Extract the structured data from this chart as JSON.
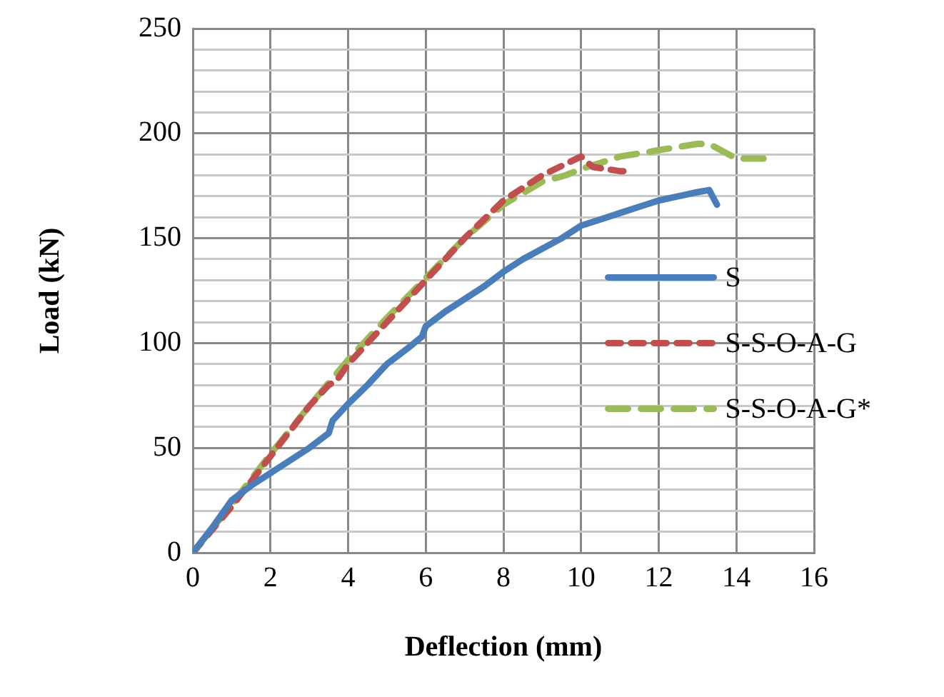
{
  "chart_data": {
    "type": "line",
    "xlabel": "Deflection (mm)",
    "ylabel": "Load (kN)",
    "xlim": [
      0,
      16
    ],
    "xticks": [
      0,
      2,
      4,
      6,
      8,
      10,
      12,
      14,
      16
    ],
    "ylim": [
      0,
      250
    ],
    "yticks": [
      0,
      {
        "value": 10,
        "label": null
      },
      {
        "value": 20,
        "label": null
      },
      {
        "value": 30,
        "label": null
      },
      {
        "value": 40,
        "label": null
      },
      50,
      {
        "value": 60,
        "label": null
      },
      {
        "value": 70,
        "label": null
      },
      {
        "value": 80,
        "label": null
      },
      {
        "value": 90,
        "label": null
      },
      100,
      {
        "value": 110,
        "label": null
      },
      {
        "value": 120,
        "label": null
      },
      {
        "value": 130,
        "label": null
      },
      {
        "value": 140,
        "label": null
      },
      150,
      {
        "value": 160,
        "label": null
      },
      {
        "value": 170,
        "label": null
      },
      {
        "value": 180,
        "label": null
      },
      {
        "value": 190,
        "label": null
      },
      200,
      {
        "value": 210,
        "label": null
      },
      {
        "value": 220,
        "label": null
      },
      {
        "value": 230,
        "label": null
      },
      {
        "value": 240,
        "label": null
      },
      250
    ],
    "grid": true,
    "legend": "right",
    "marker": "none",
    "series": [
      {
        "name": "S",
        "color": "#4a7ebb",
        "line_style": "solid",
        "x": [
          0,
          0.5,
          1,
          1.5,
          2,
          3,
          3.5,
          3.6,
          4,
          4.5,
          5,
          5.5,
          5.9,
          6,
          6.5,
          7,
          7.5,
          8,
          8.5,
          9,
          9.5,
          10,
          10.5,
          11,
          11.5,
          12,
          12.5,
          13,
          13.3,
          13.5
        ],
        "values": [
          0,
          12,
          25,
          32,
          38,
          50,
          57,
          63,
          71,
          80,
          90,
          97,
          103,
          108,
          115,
          121,
          127,
          134,
          140,
          145,
          150,
          156,
          159,
          162,
          165,
          168,
          170,
          172,
          173,
          166
        ]
      },
      {
        "name": "S-S-O-A-G",
        "color": "#c0504d",
        "line_style": "dashed",
        "x": [
          0,
          1,
          2,
          3,
          3.5,
          3.7,
          4,
          5,
          6,
          7,
          8,
          9,
          10,
          10.3,
          11,
          11.3
        ],
        "values": [
          0,
          22,
          46,
          70,
          80,
          82,
          90,
          110,
          130,
          150,
          168,
          180,
          189,
          184,
          182,
          182
        ]
      },
      {
        "name": "S-S-O-A-G*",
        "color": "#9bbb59",
        "line_style": "dashed",
        "x": [
          0,
          1,
          2,
          3,
          4,
          5,
          6,
          7,
          8,
          9,
          9.6,
          10,
          11,
          11.7,
          12,
          13,
          13.3,
          14,
          14.7
        ],
        "values": [
          0,
          23,
          47,
          70,
          92,
          112,
          131,
          150,
          166,
          177,
          180,
          183,
          189,
          191,
          192,
          195,
          195,
          188,
          188
        ]
      }
    ]
  }
}
